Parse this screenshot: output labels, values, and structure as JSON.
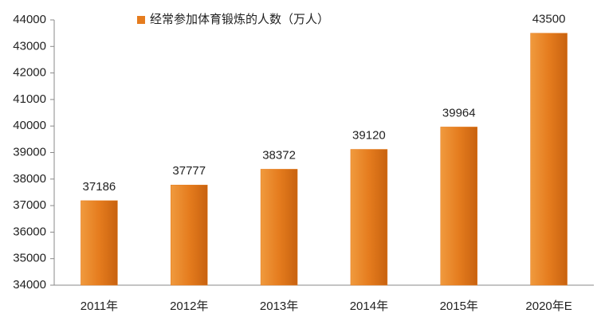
{
  "chart_data": {
    "type": "bar",
    "categories": [
      "2011年",
      "2012年",
      "2013年",
      "2014年",
      "2015年",
      "2020年E"
    ],
    "series": [
      {
        "name": "经常参加体育锻炼的人数（万人）",
        "color": "#e57c1e",
        "values": [
          37186,
          37777,
          38372,
          39120,
          39964,
          43500
        ]
      }
    ],
    "ylim": [
      34000,
      44000
    ],
    "yticks": [
      34000,
      35000,
      36000,
      37000,
      38000,
      39000,
      40000,
      41000,
      42000,
      43000,
      44000
    ],
    "legend": "top"
  }
}
